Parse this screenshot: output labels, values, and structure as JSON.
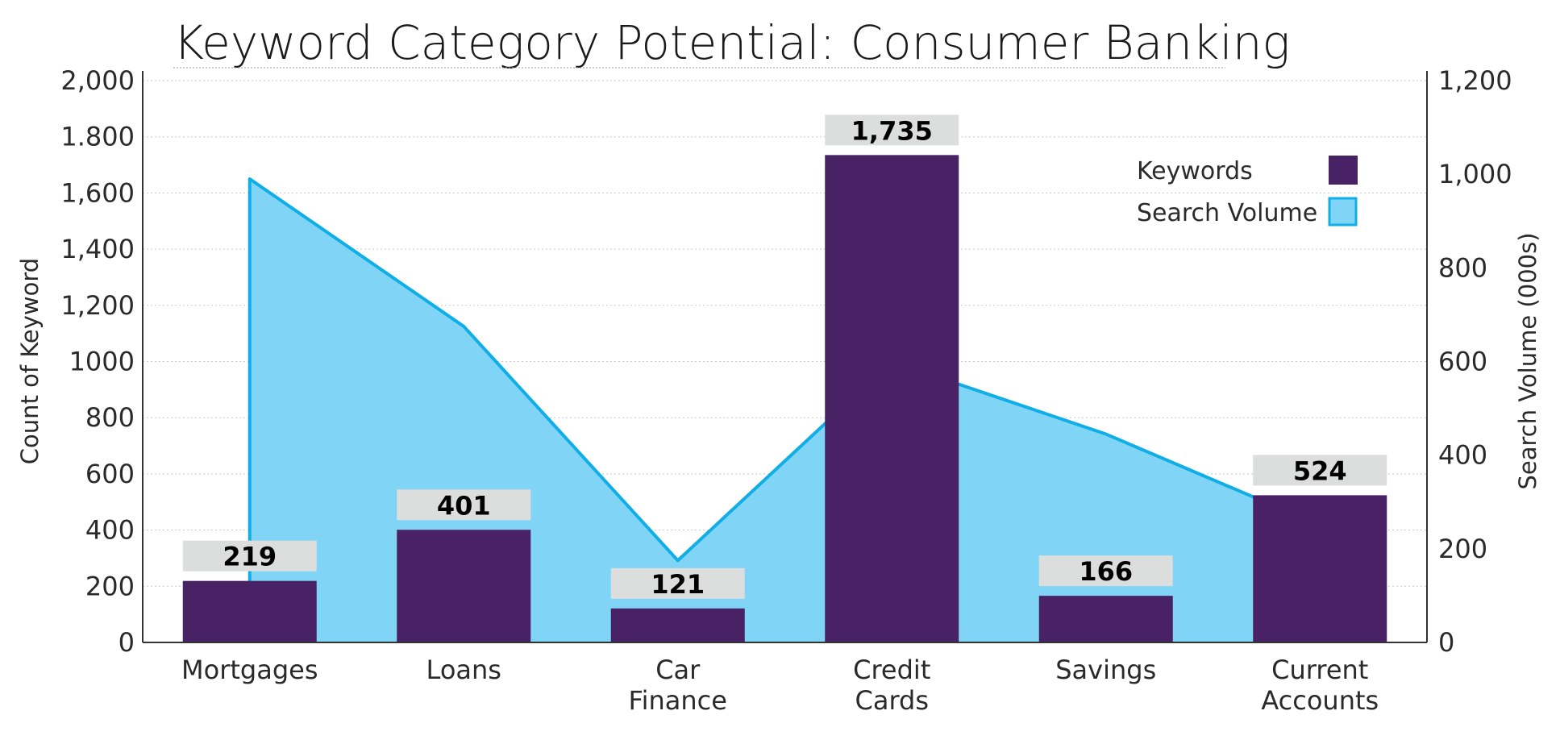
{
  "chart_data": {
    "type": "bar",
    "title": "Keyword Category Potential: Consumer Banking",
    "categories": [
      [
        "Mortgages"
      ],
      [
        "Loans"
      ],
      [
        "Car",
        "Finance"
      ],
      [
        "Credit",
        "Cards"
      ],
      [
        "Savings"
      ],
      [
        "Current",
        "Accounts"
      ]
    ],
    "series": [
      {
        "name": "Keywords",
        "type": "bar",
        "axis": "left",
        "values": [
          219,
          401,
          121,
          1735,
          166,
          524
        ],
        "color": "#482265"
      },
      {
        "name": "Search Volume",
        "type": "area",
        "axis": "right",
        "values": [
          990,
          675,
          175,
          600,
          445,
          250
        ],
        "color": "#80d5f6",
        "line_color": "#10aee6"
      }
    ],
    "y_left": {
      "label": "Count of Keyword",
      "ylim": [
        0,
        2000
      ],
      "ticks": [
        0,
        200,
        400,
        600,
        800,
        1000,
        1200,
        1400,
        1600,
        1800,
        2000
      ],
      "tick_labels": [
        "0",
        "200",
        "400",
        "600",
        "800",
        "1000",
        "1,200",
        "1,400",
        "1,600",
        "1.800",
        "2,000"
      ]
    },
    "y_right": {
      "label": "Search Volume (000s)",
      "ylim": [
        0,
        1200
      ],
      "ticks": [
        0,
        200,
        400,
        600,
        800,
        1000,
        1200
      ],
      "tick_labels": [
        "0",
        "200",
        "400",
        "600",
        "800",
        "1,000",
        "1,200"
      ]
    },
    "data_labels": [
      "219",
      "401",
      "121",
      "1,735",
      "166",
      "524"
    ],
    "legend": {
      "position": "top-right",
      "entries": [
        "Keywords",
        "Search Volume"
      ]
    },
    "grid": true,
    "colors": {
      "bar": "#482265",
      "area_fill": "#80d5f6",
      "area_line": "#10aee6",
      "label_box": "#dcdddd",
      "grid": "#c8c8c8"
    }
  }
}
